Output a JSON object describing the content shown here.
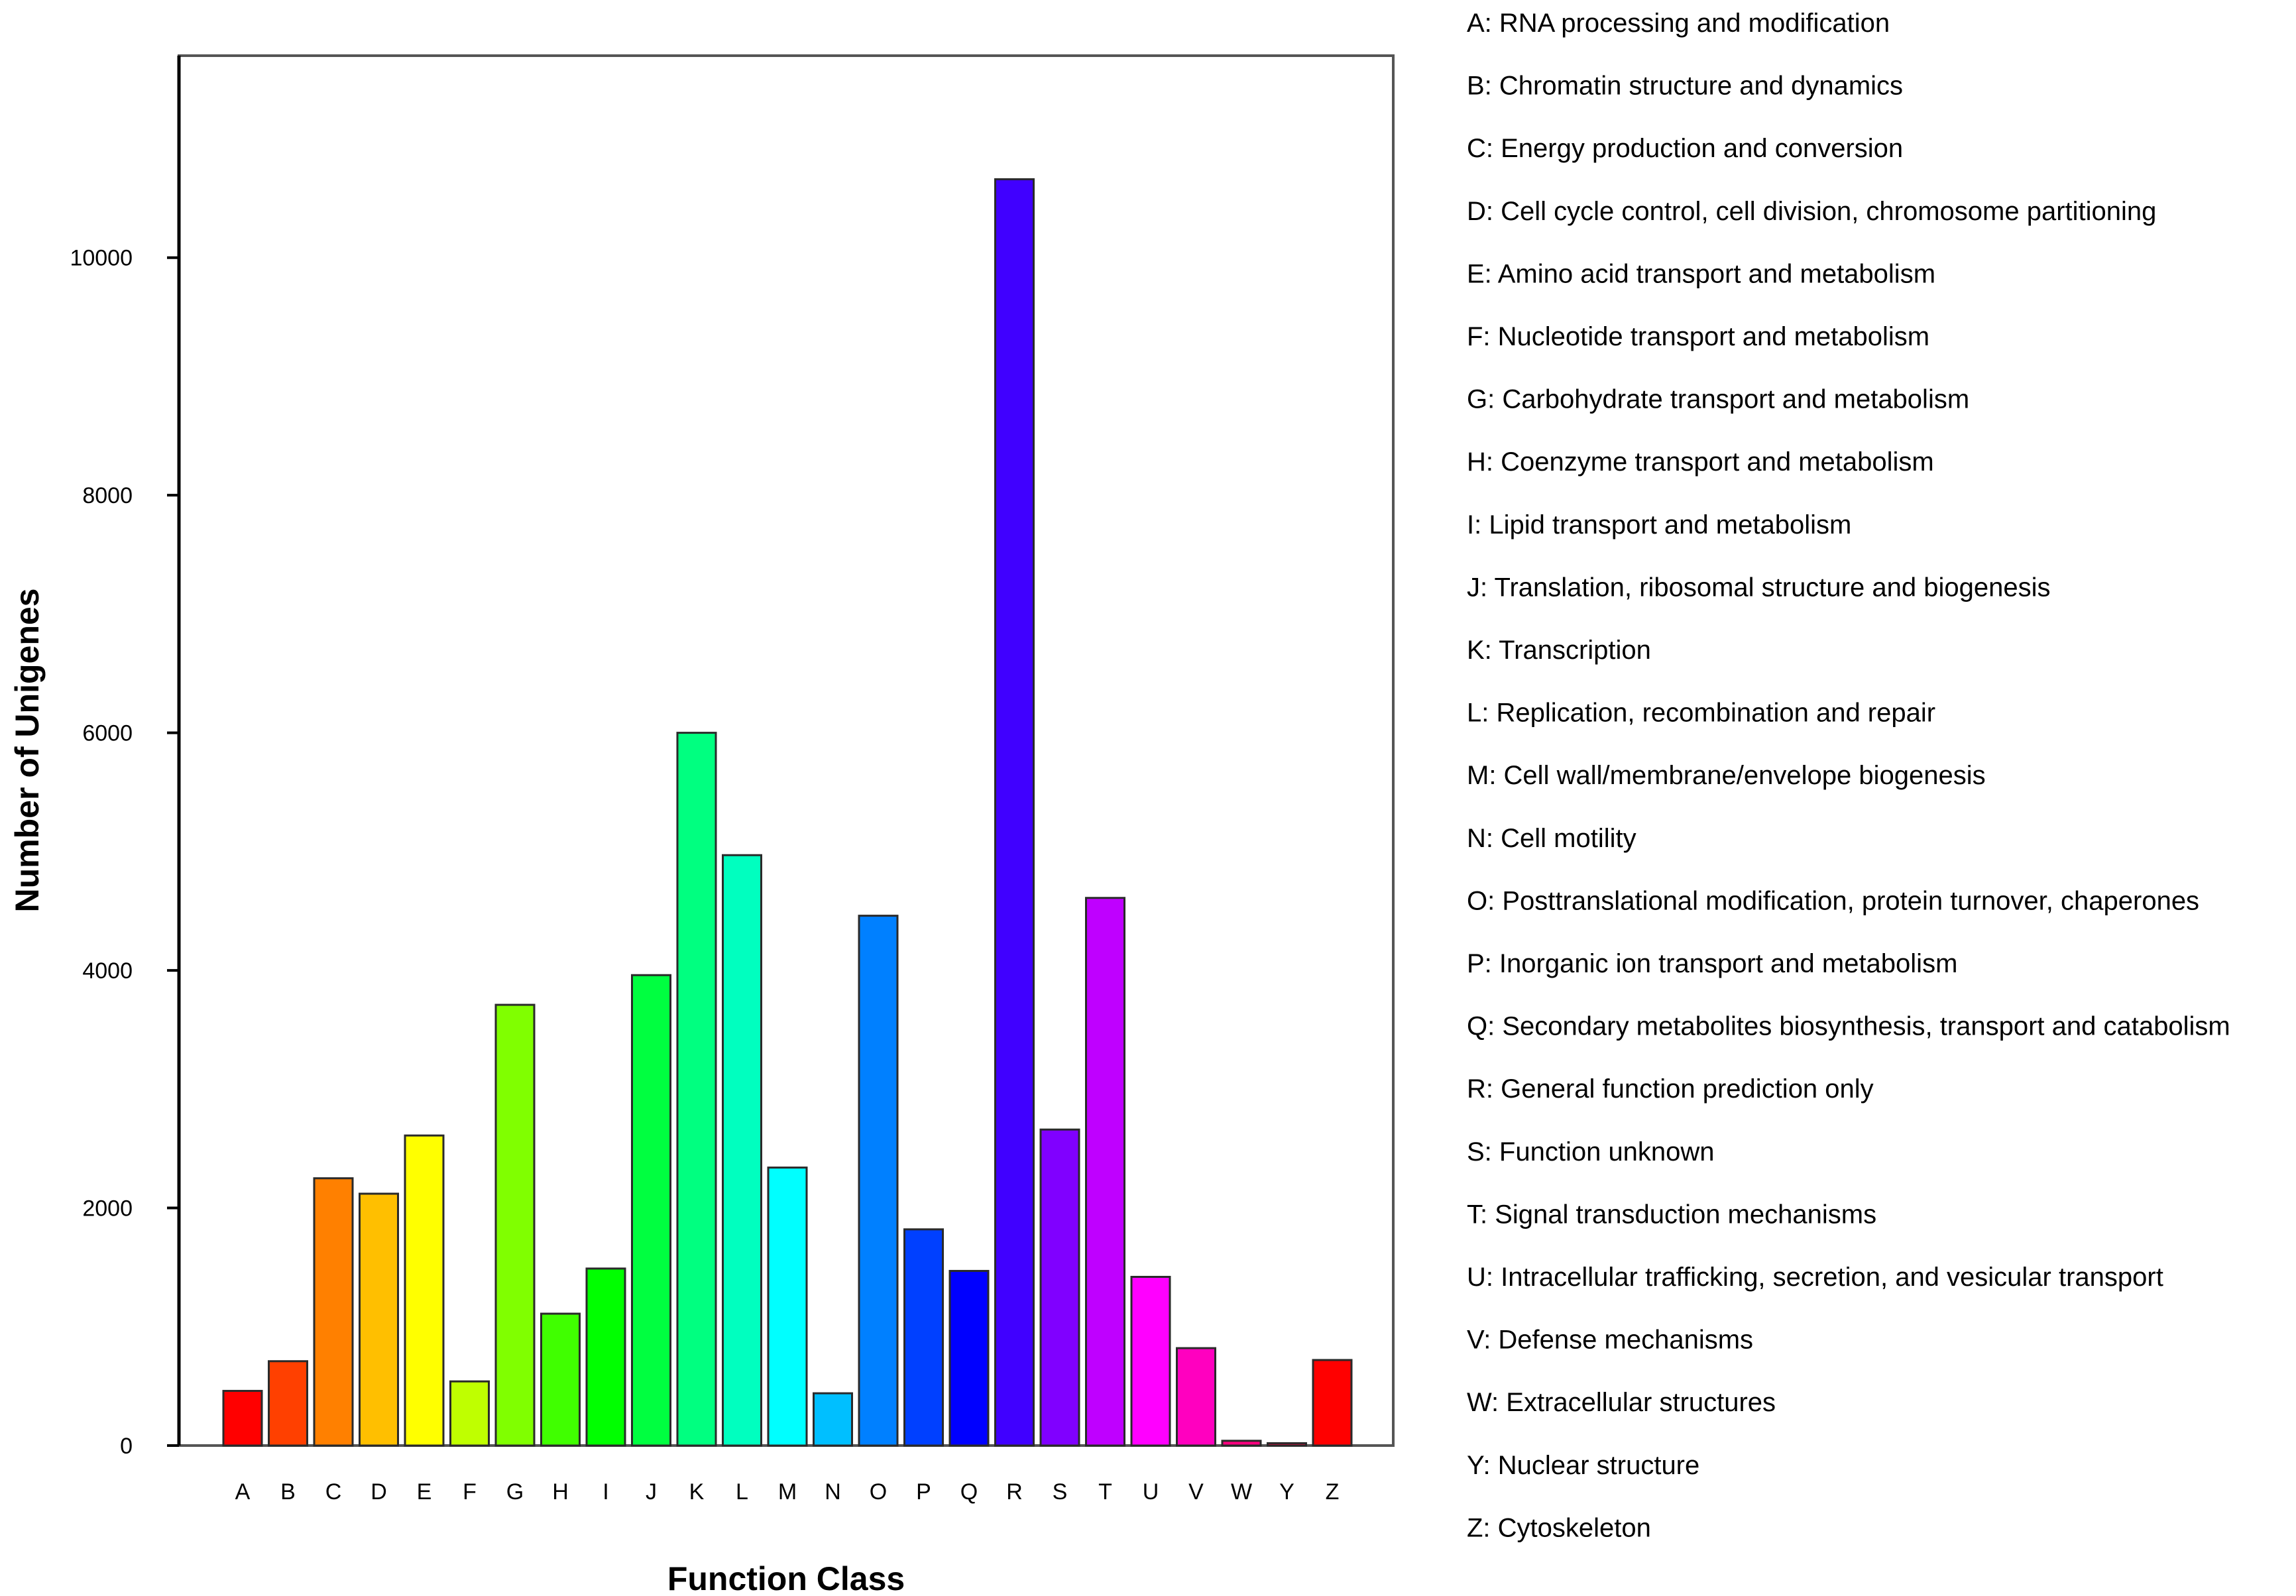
{
  "chart_data": {
    "type": "bar",
    "xlabel": "Function Class",
    "ylabel": "Number of Unigenes",
    "ylim": [
      0,
      11700
    ],
    "yticks": [
      0,
      2000,
      4000,
      6000,
      8000,
      10000
    ],
    "grid": false,
    "legend_position": "right",
    "categories": [
      "A",
      "B",
      "C",
      "D",
      "E",
      "F",
      "G",
      "H",
      "I",
      "J",
      "K",
      "L",
      "M",
      "N",
      "O",
      "P",
      "Q",
      "R",
      "S",
      "T",
      "U",
      "V",
      "W",
      "Y",
      "Z"
    ],
    "values": [
      460,
      710,
      2250,
      2120,
      2610,
      540,
      3710,
      1110,
      1490,
      3960,
      6000,
      4970,
      2340,
      440,
      4460,
      1820,
      1470,
      10660,
      2660,
      4610,
      1420,
      820,
      40,
      20,
      720
    ],
    "colors": [
      "#ff0000",
      "#ff4000",
      "#ff8000",
      "#ffbf00",
      "#ffff00",
      "#bfff00",
      "#80ff00",
      "#40ff00",
      "#00ff00",
      "#00ff40",
      "#00ff80",
      "#00ffbf",
      "#00ffff",
      "#00bfff",
      "#0080ff",
      "#0040ff",
      "#0000ff",
      "#4000ff",
      "#8000ff",
      "#bf00ff",
      "#ff00ff",
      "#ff00bf",
      "#ff0080",
      "#ff0040",
      "#ff0000"
    ],
    "legend": [
      "A: RNA processing and modification",
      "B: Chromatin structure and dynamics",
      "C: Energy production and conversion",
      "D: Cell cycle control, cell division, chromosome partitioning",
      "E: Amino acid transport and metabolism",
      "F: Nucleotide transport and metabolism",
      "G: Carbohydrate transport and metabolism",
      "H: Coenzyme transport and metabolism",
      "I: Lipid transport and metabolism",
      "J: Translation, ribosomal structure and biogenesis",
      "K: Transcription",
      "L: Replication, recombination and repair",
      "M: Cell wall/membrane/envelope biogenesis",
      "N: Cell motility",
      "O: Posttranslational modification, protein turnover, chaperones",
      "P: Inorganic ion transport and metabolism",
      "Q: Secondary metabolites biosynthesis, transport and catabolism",
      "R: General function prediction only",
      "S: Function unknown",
      "T: Signal transduction mechanisms",
      "U: Intracellular trafficking, secretion, and vesicular transport",
      "V: Defense mechanisms",
      "W: Extracellular structures",
      "Y: Nuclear structure",
      "Z: Cytoskeleton"
    ]
  }
}
